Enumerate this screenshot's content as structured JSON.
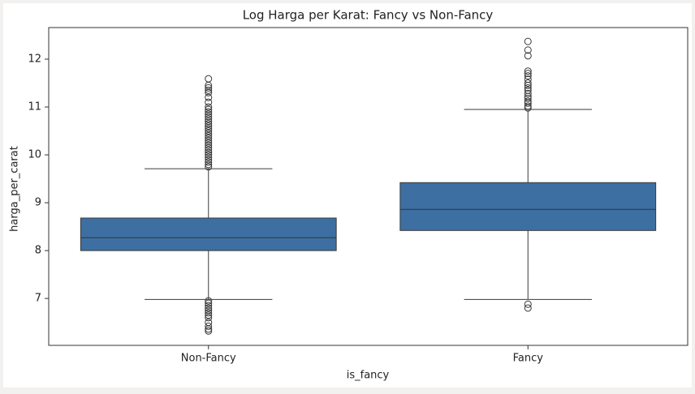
{
  "chart_data": {
    "type": "box",
    "title": "Log Harga per Karat: Fancy vs Non-Fancy",
    "xlabel": "is_fancy",
    "ylabel": "harga_per_carat",
    "categories": [
      "Non-Fancy",
      "Fancy"
    ],
    "color": "#3d6fa3",
    "ylim": [
      6.02,
      12.66
    ],
    "yticks": [
      7,
      8,
      9,
      10,
      11,
      12
    ],
    "grid": false,
    "boxes": [
      {
        "whislo": 6.98,
        "q1": 8.0,
        "med": 8.27,
        "q3": 8.68,
        "whishi": 9.71,
        "fliers": [
          9.75,
          9.8,
          9.85,
          9.9,
          9.95,
          10.0,
          10.05,
          10.1,
          10.15,
          10.2,
          10.25,
          10.3,
          10.35,
          10.4,
          10.45,
          10.5,
          10.55,
          10.6,
          10.65,
          10.7,
          10.75,
          10.8,
          10.85,
          10.9,
          10.95,
          11.0,
          11.1,
          11.2,
          11.3,
          11.35,
          11.4,
          11.45,
          11.59,
          6.95,
          6.9,
          6.85,
          6.8,
          6.75,
          6.7,
          6.65,
          6.6,
          6.5,
          6.42,
          6.36,
          6.32
        ]
      },
      {
        "whislo": 6.98,
        "q1": 8.42,
        "med": 8.86,
        "q3": 9.42,
        "whishi": 10.95,
        "fliers": [
          10.98,
          11.02,
          11.08,
          11.12,
          11.18,
          11.22,
          11.28,
          11.35,
          11.4,
          11.45,
          11.5,
          11.58,
          11.65,
          11.7,
          11.75,
          12.07,
          12.19,
          12.37,
          6.88,
          6.8
        ]
      }
    ]
  }
}
